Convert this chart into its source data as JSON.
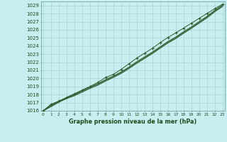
{
  "title": "Graphe pression niveau de la mer (hPa)",
  "xlabel_hours": [
    0,
    1,
    2,
    3,
    4,
    5,
    6,
    7,
    8,
    9,
    10,
    11,
    12,
    13,
    14,
    15,
    16,
    17,
    18,
    19,
    20,
    21,
    22,
    23
  ],
  "ylim": [
    1016,
    1029.5
  ],
  "yticks": [
    1016,
    1017,
    1018,
    1019,
    1020,
    1021,
    1022,
    1023,
    1024,
    1025,
    1026,
    1027,
    1028,
    1029
  ],
  "bg_color": "#c8eef0",
  "grid_color": "#a0cfcf",
  "line_color": "#2a5c2a",
  "marker_color": "#2a5c2a",
  "title_color": "#1a4c1a",
  "axis_label_color": "#1a4c1a",
  "series1": [
    1016.0,
    1016.5,
    1017.05,
    1017.5,
    1017.85,
    1018.3,
    1018.75,
    1019.15,
    1019.65,
    1020.1,
    1020.6,
    1021.2,
    1021.85,
    1022.45,
    1023.05,
    1023.7,
    1024.35,
    1024.9,
    1025.55,
    1026.15,
    1026.8,
    1027.45,
    1028.2,
    1028.85
  ],
  "series2": [
    1016.0,
    1016.6,
    1017.1,
    1017.55,
    1017.95,
    1018.4,
    1018.85,
    1019.25,
    1019.75,
    1020.2,
    1020.7,
    1021.3,
    1021.95,
    1022.55,
    1023.15,
    1023.8,
    1024.45,
    1025.0,
    1025.65,
    1026.25,
    1026.9,
    1027.55,
    1028.3,
    1028.95
  ],
  "series3": [
    1016.0,
    1016.7,
    1017.15,
    1017.6,
    1018.0,
    1018.5,
    1018.95,
    1019.35,
    1019.85,
    1020.3,
    1020.8,
    1021.4,
    1022.05,
    1022.65,
    1023.25,
    1023.9,
    1024.55,
    1025.1,
    1025.75,
    1026.35,
    1027.0,
    1027.65,
    1028.4,
    1029.05
  ],
  "series_marker": [
    1016.0,
    1016.8,
    1017.2,
    1017.65,
    1018.1,
    1018.55,
    1019.0,
    1019.5,
    1020.1,
    1020.5,
    1021.1,
    1021.8,
    1022.5,
    1023.1,
    1023.7,
    1024.4,
    1025.05,
    1025.6,
    1026.2,
    1026.8,
    1027.4,
    1028.0,
    1028.6,
    1029.15
  ]
}
